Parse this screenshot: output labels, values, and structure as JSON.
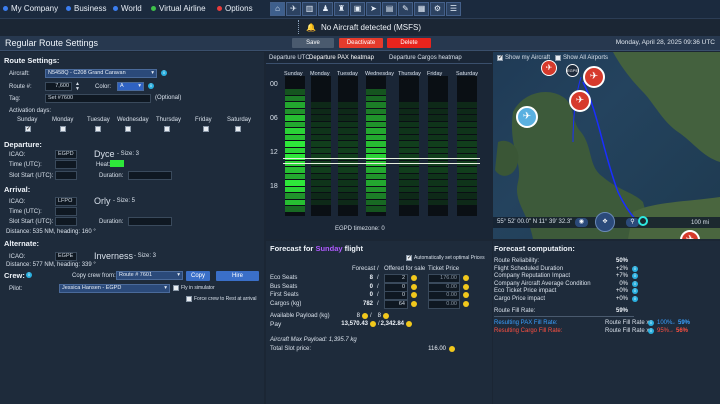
{
  "topbar": {
    "menu": [
      {
        "label": "My Company",
        "color": "#3b7ef0"
      },
      {
        "label": "Business",
        "color": "#3b7ef0"
      },
      {
        "label": "World",
        "color": "#3b7ef0"
      },
      {
        "label": "Virtual Airline",
        "color": "#3ec04a"
      },
      {
        "label": "Options",
        "color": "#e83b3b"
      }
    ]
  },
  "notification": {
    "text": "No Aircraft detected (MSFS)"
  },
  "header": {
    "title": "Regular Route Settings",
    "save": "Save",
    "deactivate": "Deactivate",
    "delete": "Delete",
    "date": "Monday, April 28, 2025 09:36 UTC"
  },
  "route": {
    "section": "Route Settings:",
    "aircraft_label": "Aircraft:",
    "aircraft_value": "N5458Q - C208 Grand Caravan",
    "routeno_label": "Route #:",
    "routeno_value": "7,600",
    "color_label": "Color:",
    "color_value": "A",
    "tag_label": "Tag:",
    "tag_value": "Set #7600",
    "tag_optional": "(Optional)",
    "activation_label": "Activation days:",
    "days": [
      "Sunday",
      "Monday",
      "Tuesday",
      "Wednesday",
      "Thursday",
      "Friday",
      "Saturday"
    ]
  },
  "departure": {
    "section": "Departure:",
    "icao_label": "ICAO:",
    "icao_value": "EGPD",
    "name": "Dyce",
    "size": "- Size: 3",
    "time_label": "Time (UTC):",
    "heat_label": "Heat:",
    "slot_label": "Slot Start (UTC):",
    "duration_label": "Duration:"
  },
  "arrival": {
    "section": "Arrival:",
    "icao_label": "ICAO:",
    "icao_value": "LFPO",
    "name": "Orly",
    "size": "- Size: 5",
    "time_label": "Time (UTC):",
    "slot_label": "Slot Start (UTC):",
    "duration_label": "Duration:",
    "distance": "Distance: 535 NM, heading: 160 °"
  },
  "alternate": {
    "section": "Alternate:",
    "icao_label": "ICAO:",
    "icao_value": "EGPE",
    "name": "Inverness",
    "size": "- Size: 3",
    "distance": "Distance: 577 NM, heading: 339 °"
  },
  "crew": {
    "section": "Crew:",
    "copy_from_label": "Copy crew from:",
    "copy_from_value": "Route # 7601",
    "copy_button": "Copy",
    "hire_button": "Hire",
    "pilot_label": "Pilot:",
    "pilot_value": "Jessica Hansen - EGPD",
    "fly_sim": "Fly in simulator",
    "force_rest": "Force crew to Rest at arrival"
  },
  "heatmap": {
    "tab_utc": "Departure UTC",
    "tab_pax": "Departure PAX heatmap",
    "tab_cargo": "Departure Cargos heatmap",
    "days": [
      "Sunday",
      "Monday",
      "Tuesday",
      "Wednesday",
      "Thursday",
      "Friday",
      "Saturday"
    ],
    "hours": [
      "00",
      "06",
      "12",
      "18"
    ],
    "timezone": "EGPD timezone: 0"
  },
  "map": {
    "show_aircraft": "Show my Aircraft",
    "show_airports": "Show All Airports",
    "coords": "55° 52' 00.0\" N 11° 39' 32.3\"",
    "scale": "100 mi"
  },
  "forecast": {
    "title_pre": "Forecast for",
    "title_day": "Sunday",
    "title_post": "flight",
    "auto_price": "Automatically set optimal Prices",
    "col_forecast": "Forecast",
    "col_offered": "Offered for sale",
    "col_price": "Ticket Price",
    "rows": [
      {
        "label": "Eco Seats",
        "forecast": "8",
        "offered": "2",
        "price": "176.00"
      },
      {
        "label": "Bus Seats",
        "forecast": "0",
        "offered": "0",
        "price": "0.00"
      },
      {
        "label": "First Seats",
        "forecast": "0",
        "offered": "0",
        "price": "0.00"
      },
      {
        "label": "Cargos (kg)",
        "forecast": "782",
        "offered": "64",
        "price": "0.00"
      }
    ],
    "payload_label": "Available Payload (kg)",
    "payload_a": "8",
    "payload_b": "8",
    "pay_label": "Pay",
    "pay_a": "13,570.43",
    "pay_b": "2,342.84",
    "max_payload": "Aircraft Max Payload: 1,395.7 kg",
    "slot_label": "Total Slot price:",
    "slot_value": "116.00"
  },
  "computation": {
    "title": "Forecast computation:",
    "rows": [
      {
        "label": "Route Reliability:",
        "value": "50%"
      },
      {
        "label": "Flight Scheduled Duration",
        "value": "+2%"
      },
      {
        "label": "Company Reputation Impact",
        "value": "+7%"
      },
      {
        "label": "Company Aircraft Average Condition",
        "value": "0%"
      },
      {
        "label": "Eco Ticket Price impact",
        "value": "+0%"
      },
      {
        "label": "Cargo Price impact",
        "value": "+0%"
      }
    ],
    "fill_label": "Route Fill Rate:",
    "fill_value": "59%",
    "pax_label": "Resulting PAX Fill Rate:",
    "pax_mid": "Route Fill Rate x",
    "pax_factor": "100%",
    "pax_result": "59%",
    "cargo_label": "Resulting Cargo Fill Rate:",
    "cargo_mid": "Route Fill Rate x",
    "cargo_factor": "95%",
    "cargo_result": "56%",
    "arrow": "→"
  },
  "colors": {
    "accent": "#2bb0e0",
    "danger": "#e53b2c",
    "heat_green": "#2ee83a",
    "pax_blue": "#3aa0ff",
    "cargo_red": "#ff5040"
  }
}
